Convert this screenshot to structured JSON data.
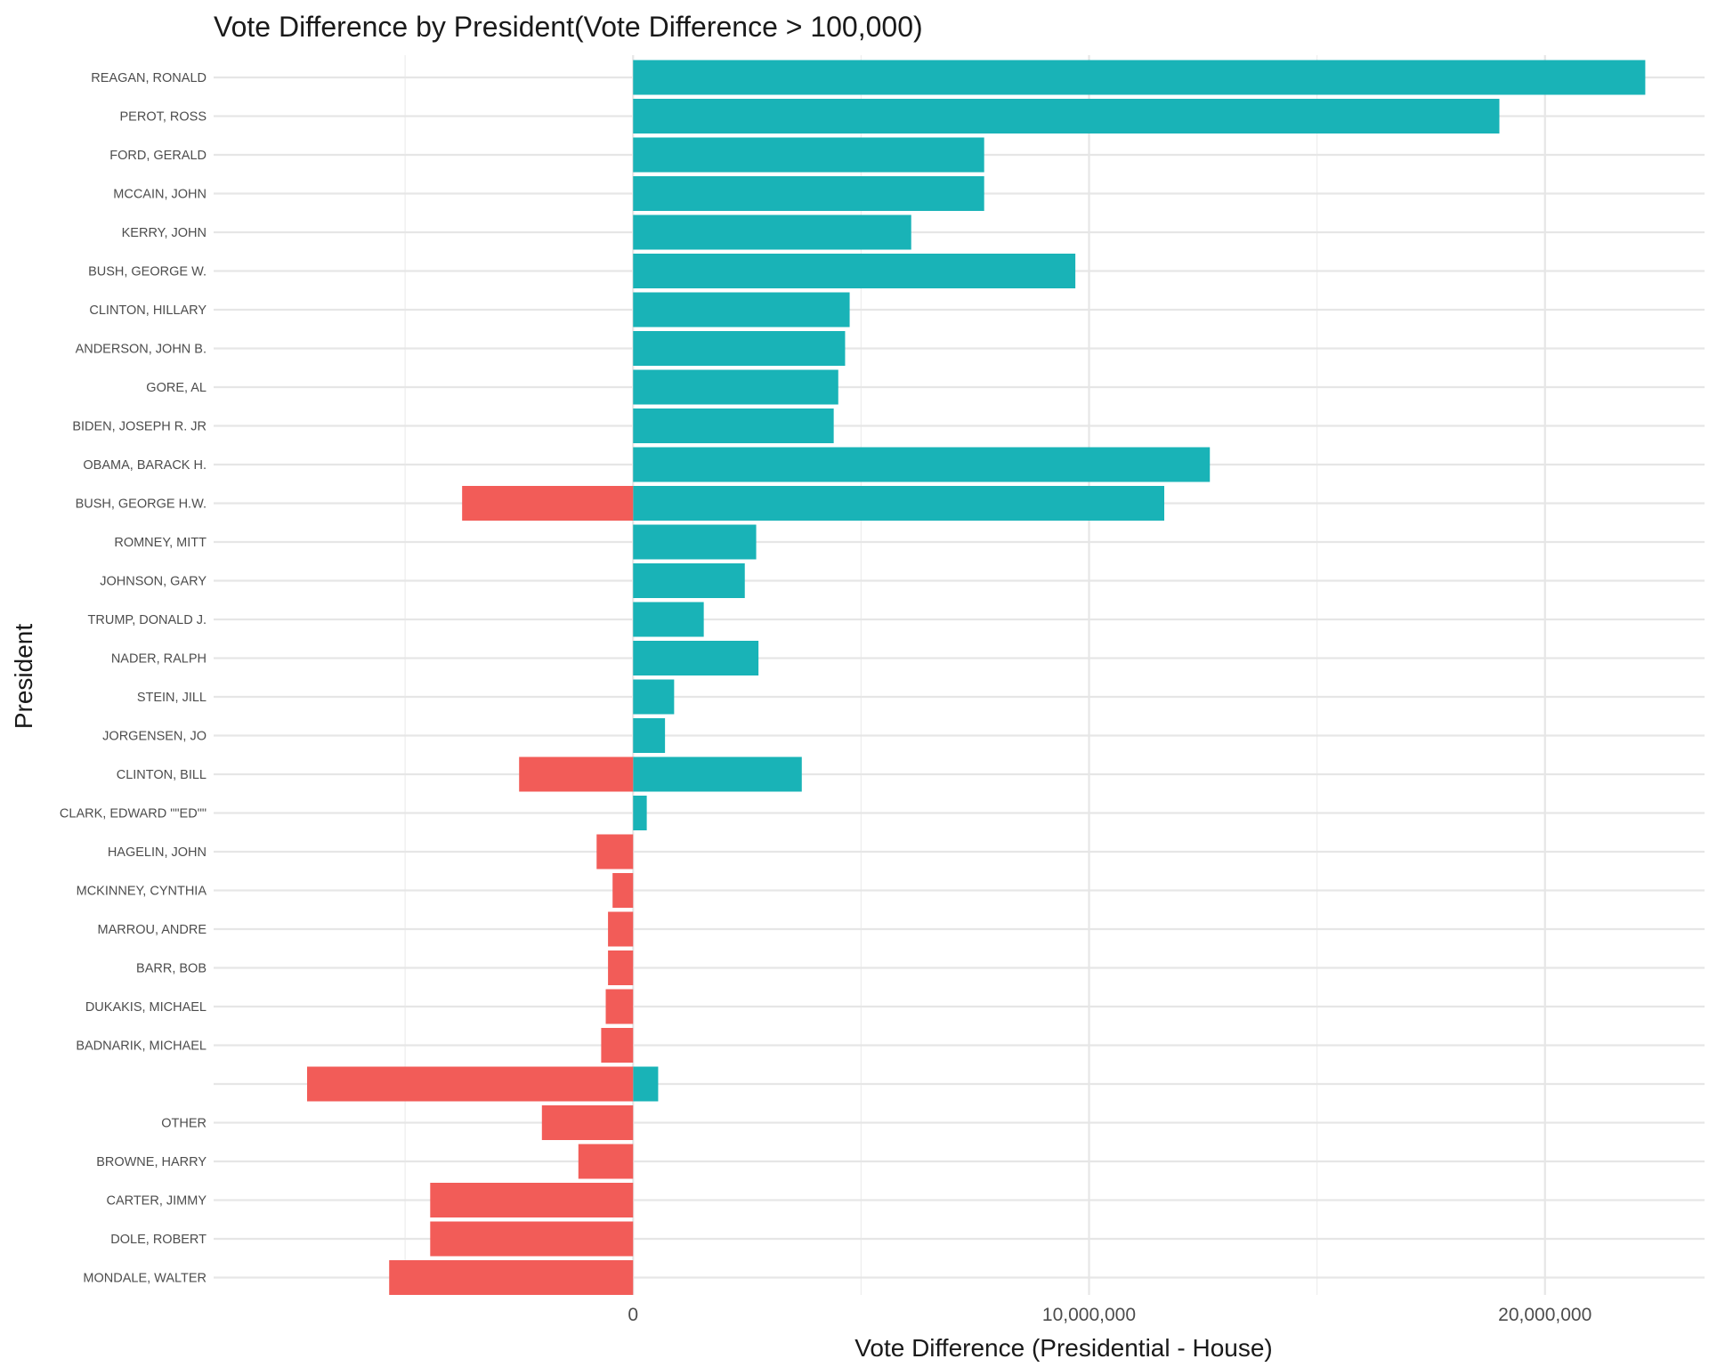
{
  "chart_data": {
    "type": "bar",
    "orientation": "horizontal",
    "title": "Vote Difference by President(Vote Difference > 100,000)",
    "xlabel": "Vote Difference (Presidential - House)",
    "ylabel": "President",
    "xlim": [
      -9200000,
      23500000
    ],
    "xticks": [
      {
        "value": 0,
        "label": "0"
      },
      {
        "value": 10000000,
        "label": "10,000,000"
      },
      {
        "value": 20000000,
        "label": "20,000,000"
      }
    ],
    "minor_xticks": [
      -5000000,
      5000000,
      15000000
    ],
    "grid": true,
    "legend": "none",
    "colors": {
      "positive": "#19b3b7",
      "negative": "#f25c58"
    },
    "categories": [
      "REAGAN, RONALD",
      "PEROT, ROSS",
      "FORD, GERALD",
      "MCCAIN, JOHN",
      "KERRY, JOHN",
      "BUSH, GEORGE W.",
      "CLINTON, HILLARY",
      "ANDERSON, JOHN B.",
      "GORE, AL",
      "BIDEN, JOSEPH R. JR",
      "OBAMA, BARACK H.",
      "BUSH, GEORGE H.W.",
      "ROMNEY, MITT",
      "JOHNSON, GARY",
      "TRUMP, DONALD J.",
      "NADER, RALPH",
      "STEIN, JILL",
      "JORGENSEN, JO",
      "CLINTON, BILL",
      "CLARK, EDWARD \"\"ED\"\"",
      "HAGELIN, JOHN",
      "MCKINNEY, CYNTHIA",
      "MARROU, ANDRE",
      "BARR, BOB",
      "DUKAKIS, MICHAEL",
      "BADNARIK, MICHAEL",
      "",
      "OTHER",
      "BROWNE, HARRY",
      "CARTER, JIMMY",
      "DOLE, ROBERT",
      "MONDALE, WALTER"
    ],
    "series": [
      {
        "sign": "positive",
        "values": [
          22200000,
          19000000,
          7700000,
          7700000,
          6100000,
          9700000,
          4750000,
          4650000,
          4500000,
          4400000,
          12650000,
          11650000,
          2700000,
          2450000,
          1550000,
          2750000,
          900000,
          700000,
          3700000,
          300000,
          0,
          0,
          0,
          0,
          0,
          0,
          550000,
          0,
          0,
          0,
          0,
          0
        ]
      },
      {
        "sign": "negative",
        "values": [
          0,
          0,
          0,
          0,
          0,
          0,
          0,
          0,
          0,
          0,
          0,
          -3750000,
          0,
          0,
          0,
          0,
          0,
          0,
          -2500000,
          0,
          -800000,
          -450000,
          -550000,
          -550000,
          -600000,
          -700000,
          -7150000,
          -2000000,
          -1200000,
          -4450000,
          -4450000,
          -5350000
        ]
      }
    ]
  }
}
